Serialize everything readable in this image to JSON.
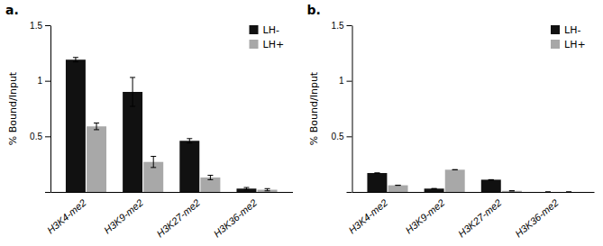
{
  "chart_data": [
    {
      "type": "bar",
      "title": "a.",
      "categories": [
        "H3K4-me2",
        "H3K9-me2",
        "H3K27-me2",
        "H3K36-me2"
      ],
      "series": [
        {
          "name": "LH-",
          "color": "#111111",
          "values": [
            1.19,
            0.9,
            0.46,
            0.03
          ],
          "errors": [
            0.02,
            0.13,
            0.02,
            0.01
          ]
        },
        {
          "name": "LH+",
          "color": "#a8a8a8",
          "values": [
            0.59,
            0.27,
            0.13,
            0.02
          ],
          "errors": [
            0.03,
            0.05,
            0.02,
            0.01
          ]
        }
      ],
      "y_label": "% Bound/Input",
      "ylim": [
        0,
        1.5
      ],
      "yticks": [
        {
          "value": 0,
          "label": null
        },
        0.5,
        1,
        1.5
      ],
      "legend": "upper right"
    },
    {
      "type": "bar",
      "title": "b.",
      "categories": [
        "H3K4-me2",
        "H3K9-me2",
        "H3K27-me2",
        "H3K36-me2"
      ],
      "series": [
        {
          "name": "LH-",
          "color": "#111111",
          "values": [
            0.17,
            0.03,
            0.11,
            0.0
          ],
          "errors": [
            0.0,
            0.0,
            0.0,
            0.0
          ]
        },
        {
          "name": "LH+",
          "color": "#a8a8a8",
          "values": [
            0.06,
            0.2,
            0.01,
            0.0
          ],
          "errors": [
            0.0,
            0.0,
            0.0,
            0.0
          ]
        }
      ],
      "y_label": "% Bound/Input",
      "ylim": [
        0,
        1.5
      ],
      "yticks": [
        {
          "value": 0,
          "label": null
        },
        0.5,
        1,
        1.5
      ],
      "legend": "upper right"
    }
  ]
}
